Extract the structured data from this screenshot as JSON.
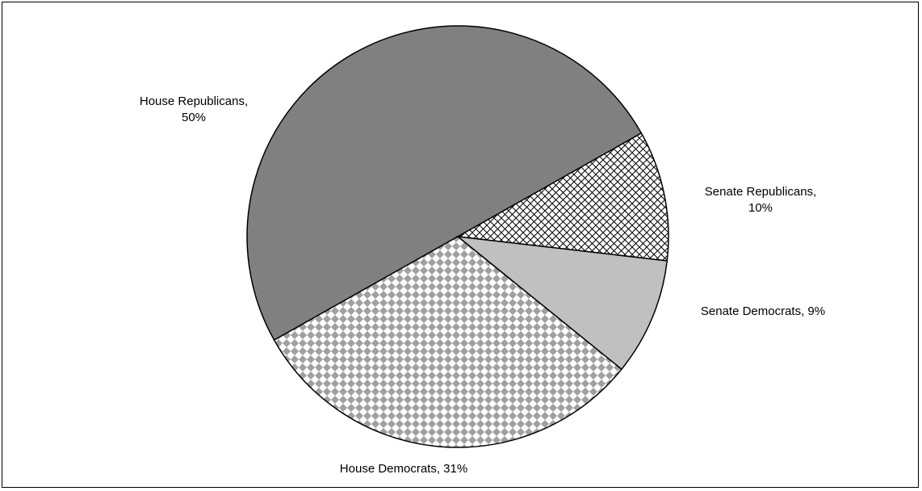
{
  "chart_data": {
    "type": "pie",
    "slices": [
      {
        "category": "House Republicans,",
        "value_label": "50%",
        "value": 50,
        "fill": "solid-dark",
        "color": "#808080"
      },
      {
        "category": "Senate Republicans,",
        "value_label": "10%",
        "value": 10,
        "fill": "crosshatch",
        "color": "#ffffff"
      },
      {
        "category": "Senate Democrats,",
        "value_label": "9%",
        "value": 9,
        "fill": "solid-light",
        "color": "#c0c0c0"
      },
      {
        "category": "House Democrats,",
        "value_label": "31%",
        "value": 31,
        "fill": "checker",
        "color": "#a0a0a0"
      }
    ]
  }
}
